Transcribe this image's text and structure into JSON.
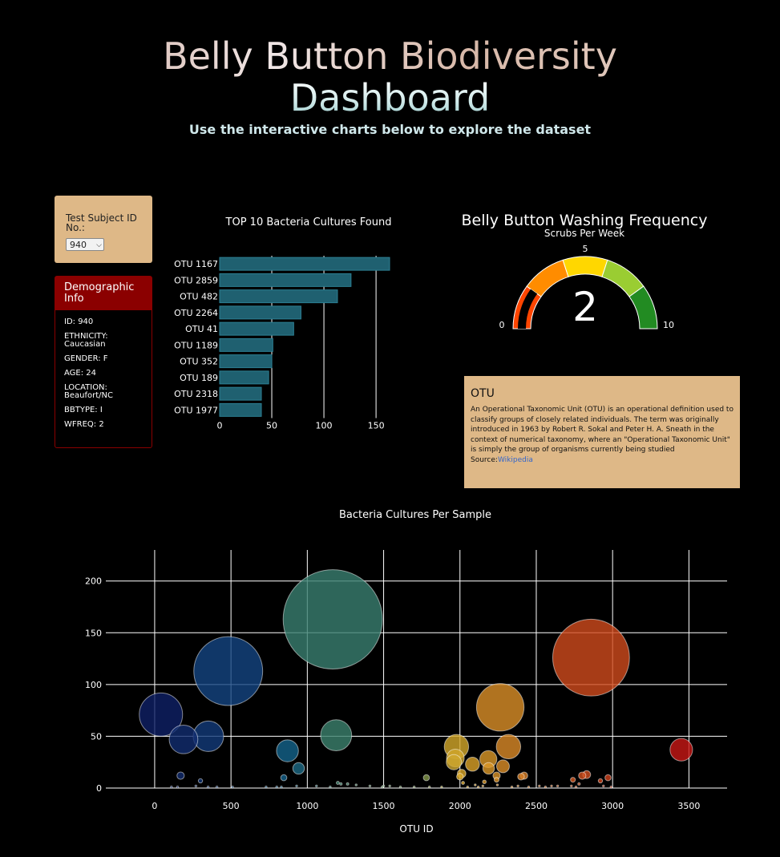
{
  "header": {
    "title_line1": "Belly Button Biodiversity",
    "title_line2": "Dashboard",
    "subtitle": "Use the interactive charts below to explore the dataset"
  },
  "selector": {
    "label": "Test Subject ID No.:",
    "value": "940"
  },
  "demographic": {
    "title": "Demographic Info",
    "rows": [
      "ID: 940",
      "ETHNICITY: Caucasian",
      "GENDER: F",
      "AGE: 24",
      "LOCATION: Beaufort/NC",
      "BBTYPE: I",
      "WFREQ: 2"
    ]
  },
  "otu_info": {
    "title": "OTU",
    "text": "An Operational Taxonomic Unit (OTU) is an operational definition used to classify groups of closely related individuals. The term was originally introduced in 1963 by Robert R. Sokal and Peter H. A. Sneath in the context of numerical taxonomy, where an \"Operational Taxonomic Unit\" is simply the group of organisms currently being studied",
    "source_label": "Source:",
    "source_link": "Wikipedia"
  },
  "colors": {
    "bar": "#1f6070",
    "panel": "#deb887",
    "demo_header": "#8b0000"
  },
  "chart_data": [
    {
      "type": "bar",
      "orientation": "horizontal",
      "title": "TOP 10 Bacteria Cultures Found",
      "categories": [
        "OTU 1167",
        "OTU 2859",
        "OTU 482",
        "OTU 2264",
        "OTU 41",
        "OTU 1189",
        "OTU 352",
        "OTU 189",
        "OTU 2318",
        "OTU 1977"
      ],
      "values": [
        163,
        126,
        113,
        78,
        71,
        51,
        50,
        47,
        40,
        40
      ],
      "xlim": [
        0,
        163
      ],
      "xticks": [
        0,
        50,
        100,
        150
      ],
      "grid": true
    },
    {
      "type": "gauge",
      "title": "Belly Button Washing Frequency",
      "subtitle": "Scrubs Per Week",
      "value": 2,
      "range": [
        0,
        10
      ],
      "tick_labels": [
        "0",
        "5",
        "10"
      ],
      "steps": [
        {
          "from": 0,
          "to": 2,
          "color": "#ff4500"
        },
        {
          "from": 2,
          "to": 4,
          "color": "#ff8c00"
        },
        {
          "from": 4,
          "to": 6,
          "color": "#ffd700"
        },
        {
          "from": 6,
          "to": 8,
          "color": "#9acd32"
        },
        {
          "from": 8,
          "to": 10,
          "color": "#228b22"
        }
      ]
    },
    {
      "type": "scatter",
      "title": "Bacteria Cultures Per Sample",
      "xlabel": "OTU ID",
      "ylabel": "",
      "xlim": [
        -320,
        3750
      ],
      "ylim": [
        0,
        230
      ],
      "xticks": [
        0,
        500,
        1000,
        1500,
        2000,
        2500,
        3000,
        3500
      ],
      "yticks": [
        0,
        50,
        100,
        150,
        200
      ],
      "grid": true,
      "points": [
        {
          "x": 1167,
          "y": 163
        },
        {
          "x": 2859,
          "y": 126
        },
        {
          "x": 482,
          "y": 113
        },
        {
          "x": 2264,
          "y": 78
        },
        {
          "x": 41,
          "y": 71
        },
        {
          "x": 1189,
          "y": 51
        },
        {
          "x": 352,
          "y": 50
        },
        {
          "x": 189,
          "y": 47
        },
        {
          "x": 2318,
          "y": 40
        },
        {
          "x": 1977,
          "y": 40
        },
        {
          "x": 3450,
          "y": 37
        },
        {
          "x": 870,
          "y": 36
        },
        {
          "x": 1970,
          "y": 29
        },
        {
          "x": 2186,
          "y": 28
        },
        {
          "x": 1960,
          "y": 25
        },
        {
          "x": 2082,
          "y": 23
        },
        {
          "x": 2282,
          "y": 21
        },
        {
          "x": 2188,
          "y": 19
        },
        {
          "x": 943,
          "y": 19
        },
        {
          "x": 2011,
          "y": 14
        },
        {
          "x": 2830,
          "y": 13
        },
        {
          "x": 2240,
          "y": 12
        },
        {
          "x": 2420,
          "y": 12
        },
        {
          "x": 2801,
          "y": 12
        },
        {
          "x": 2400,
          "y": 11
        },
        {
          "x": 2000,
          "y": 11
        },
        {
          "x": 170,
          "y": 12
        },
        {
          "x": 846,
          "y": 10
        },
        {
          "x": 2970,
          "y": 10
        },
        {
          "x": 1780,
          "y": 10
        },
        {
          "x": 2740,
          "y": 8
        },
        {
          "x": 2240,
          "y": 8
        },
        {
          "x": 2920,
          "y": 7
        },
        {
          "x": 300,
          "y": 7
        },
        {
          "x": 2160,
          "y": 6
        },
        {
          "x": 2020,
          "y": 5
        },
        {
          "x": 1200,
          "y": 5
        },
        {
          "x": 2780,
          "y": 4
        },
        {
          "x": 1264,
          "y": 4
        },
        {
          "x": 1220,
          "y": 4
        },
        {
          "x": 2100,
          "y": 3
        },
        {
          "x": 1320,
          "y": 3
        },
        {
          "x": 2245,
          "y": 3
        },
        {
          "x": 2520,
          "y": 2
        },
        {
          "x": 930,
          "y": 2
        },
        {
          "x": 1500,
          "y": 2
        },
        {
          "x": 2600,
          "y": 2
        },
        {
          "x": 2640,
          "y": 2
        },
        {
          "x": 2940,
          "y": 2
        },
        {
          "x": 1060,
          "y": 2
        },
        {
          "x": 2730,
          "y": 2
        },
        {
          "x": 2380,
          "y": 2
        },
        {
          "x": 270,
          "y": 2
        },
        {
          "x": 1540,
          "y": 2
        },
        {
          "x": 2150,
          "y": 2
        },
        {
          "x": 1410,
          "y": 2
        },
        {
          "x": 1150,
          "y": 1
        },
        {
          "x": 1490,
          "y": 1
        },
        {
          "x": 1880,
          "y": 1
        },
        {
          "x": 2050,
          "y": 1
        },
        {
          "x": 2120,
          "y": 1
        },
        {
          "x": 2340,
          "y": 1
        },
        {
          "x": 2450,
          "y": 1
        },
        {
          "x": 2560,
          "y": 1
        },
        {
          "x": 2760,
          "y": 1
        },
        {
          "x": 2990,
          "y": 1
        },
        {
          "x": 110,
          "y": 1
        },
        {
          "x": 150,
          "y": 1
        },
        {
          "x": 350,
          "y": 1
        },
        {
          "x": 408,
          "y": 1
        },
        {
          "x": 510,
          "y": 1
        },
        {
          "x": 730,
          "y": 1
        },
        {
          "x": 800,
          "y": 1
        },
        {
          "x": 830,
          "y": 1
        },
        {
          "x": 1610,
          "y": 1
        },
        {
          "x": 1700,
          "y": 1
        },
        {
          "x": 1800,
          "y": 1
        }
      ]
    }
  ]
}
